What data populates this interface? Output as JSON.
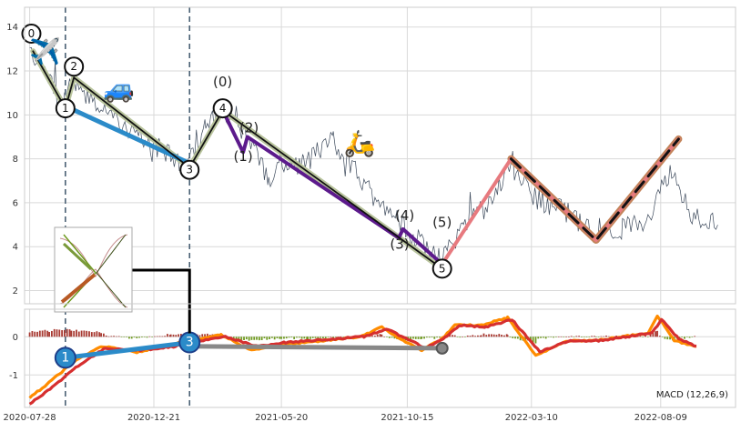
{
  "chart_data": [
    {
      "type": "line",
      "panel": "price",
      "y_ticks": [
        2,
        4,
        6,
        8,
        10,
        12,
        14
      ],
      "ylim": [
        1.4,
        14.9
      ],
      "grid": true,
      "series": [
        {
          "role": "price",
          "color": "#3d4a5c",
          "anchors": [
            [
              "2020-07-28",
              13.0
            ],
            [
              "2020-08-15",
              11.8
            ],
            [
              "2020-09-05",
              10.4
            ],
            [
              "2020-09-14",
              11.7
            ],
            [
              "2020-10-20",
              10.2
            ],
            [
              "2020-11-25",
              9.2
            ],
            [
              "2020-12-25",
              8.5
            ],
            [
              "2021-01-28",
              7.6
            ],
            [
              "2021-02-20",
              9.4
            ],
            [
              "2021-03-12",
              10.3
            ],
            [
              "2021-04-10",
              8.8
            ],
            [
              "2021-05-05",
              7.2
            ],
            [
              "2021-06-15",
              7.8
            ],
            [
              "2021-07-20",
              8.8
            ],
            [
              "2021-09-01",
              6.5
            ],
            [
              "2021-10-18",
              4.6
            ],
            [
              "2021-11-25",
              3.4
            ],
            [
              "2021-12-20",
              5.0
            ],
            [
              "2022-01-25",
              6.0
            ],
            [
              "2022-02-14",
              7.9
            ],
            [
              "2022-03-15",
              6.2
            ],
            [
              "2022-04-20",
              5.6
            ],
            [
              "2022-05-25",
              4.6
            ],
            [
              "2022-06-25",
              4.8
            ],
            [
              "2022-07-25",
              5.3
            ],
            [
              "2022-08-20",
              7.5
            ],
            [
              "2022-09-15",
              5.5
            ],
            [
              "2022-10-15",
              5.1
            ]
          ]
        },
        {
          "role": "wave-main",
          "color": "#111111",
          "width": 1.8,
          "points": [
            [
              "2020-08-01",
              12.9
            ],
            [
              "2020-09-08",
              10.3
            ],
            [
              "2020-09-18",
              11.7
            ],
            [
              "2021-02-01",
              7.6
            ],
            [
              "2021-03-12",
              10.2
            ],
            [
              "2021-11-25",
              3.0
            ]
          ]
        },
        {
          "role": "wave-shadow",
          "color": "#b9c49d",
          "width": 6,
          "points": [
            [
              "2020-08-01",
              12.9
            ],
            [
              "2020-09-08",
              10.3
            ],
            [
              "2020-09-18",
              11.7
            ],
            [
              "2021-02-01",
              7.6
            ],
            [
              "2021-03-12",
              10.2
            ],
            [
              "2021-11-25",
              3.0
            ]
          ]
        },
        {
          "role": "trend-blue",
          "color": "#2b8bc9",
          "width": 5,
          "points": [
            [
              "2020-09-08",
              10.4
            ],
            [
              "2021-02-01",
              7.8
            ]
          ]
        },
        {
          "role": "sub-wave",
          "color": "#5c1a8c",
          "width": 4,
          "points": [
            [
              "2021-03-12",
              10.2
            ],
            [
              "2021-04-05",
              8.3
            ],
            [
              "2021-04-10",
              9.0
            ],
            [
              "2021-10-05",
              4.4
            ],
            [
              "2021-10-10",
              4.8
            ],
            [
              "2021-11-25",
              3.2
            ]
          ]
        },
        {
          "role": "projection-pink",
          "color": "#e77a7f",
          "width": 4,
          "points": [
            [
              "2021-11-25",
              3.2
            ],
            [
              "2022-02-14",
              8.0
            ],
            [
              "2022-05-25",
              4.3
            ],
            [
              "2022-08-30",
              8.9
            ]
          ]
        },
        {
          "role": "projection-brown",
          "color": "#c4845b",
          "width": 8,
          "points": [
            [
              "2022-02-14",
              8.0
            ],
            [
              "2022-05-25",
              4.3
            ],
            [
              "2022-08-30",
              8.9
            ]
          ]
        },
        {
          "role": "projection-dashed",
          "color": "#111111",
          "width": 3,
          "dash": true,
          "points": [
            [
              "2022-02-14",
              8.0
            ],
            [
              "2022-05-25",
              4.3
            ],
            [
              "2022-08-30",
              8.9
            ]
          ]
        }
      ],
      "wave_circles": [
        {
          "label": "0",
          "x": "2020-07-30",
          "y": 13.7
        },
        {
          "label": "2",
          "x": "2020-09-18",
          "y": 12.2
        },
        {
          "label": "1",
          "x": "2020-09-08",
          "y": 10.3
        },
        {
          "label": "3",
          "x": "2021-02-01",
          "y": 7.5
        },
        {
          "label": "4",
          "x": "2021-03-12",
          "y": 10.3
        },
        {
          "label": "5",
          "x": "2021-11-25",
          "y": 3.0
        }
      ],
      "sub_labels": [
        {
          "label": "(0)",
          "x": "2021-03-12",
          "y": 11.3
        },
        {
          "label": "(2)",
          "x": "2021-04-12",
          "y": 9.2
        },
        {
          "label": "(1)",
          "x": "2021-04-05",
          "y": 7.9
        },
        {
          "label": "(4)",
          "x": "2021-10-12",
          "y": 5.2
        },
        {
          "label": "(3)",
          "x": "2021-10-06",
          "y": 3.9
        },
        {
          "label": "(5)",
          "x": "2021-11-25",
          "y": 4.9
        }
      ],
      "emoji": [
        {
          "glyph": "✈️",
          "name": "airplane-emoji",
          "x": "2020-08-15",
          "y": 12.9
        },
        {
          "glyph": "🚙",
          "name": "car-emoji",
          "x": "2020-11-10",
          "y": 11.2
        },
        {
          "glyph": "🛵",
          "name": "scooter-emoji",
          "x": "2021-08-20",
          "y": 8.7
        }
      ],
      "vlines": [
        "2020-09-08",
        "2021-02-01"
      ]
    },
    {
      "type": "line",
      "panel": "macd",
      "label": "MACD (12,26,9)",
      "y_ticks": [
        -1,
        0
      ],
      "ylim": [
        -1.85,
        0.72
      ],
      "grid": true,
      "series": [
        {
          "role": "macd",
          "color": "#ff8c00",
          "anchors": [
            [
              "2020-07-28",
              -1.6
            ],
            [
              "2020-08-20",
              -1.2
            ],
            [
              "2020-09-15",
              -0.7
            ],
            [
              "2020-10-20",
              -0.25
            ],
            [
              "2020-12-01",
              -0.4
            ],
            [
              "2021-01-10",
              -0.2
            ],
            [
              "2021-02-01",
              -0.1
            ],
            [
              "2021-03-10",
              0.05
            ],
            [
              "2021-04-15",
              -0.35
            ],
            [
              "2021-05-20",
              -0.2
            ],
            [
              "2021-06-20",
              -0.15
            ],
            [
              "2021-08-20",
              0.0
            ],
            [
              "2021-09-15",
              0.25
            ],
            [
              "2021-10-10",
              -0.1
            ],
            [
              "2021-11-01",
              -0.35
            ],
            [
              "2021-11-25",
              -0.05
            ],
            [
              "2021-12-10",
              0.3
            ],
            [
              "2022-01-10",
              0.3
            ],
            [
              "2022-02-10",
              0.5
            ],
            [
              "2022-03-15",
              -0.5
            ],
            [
              "2022-04-20",
              -0.1
            ],
            [
              "2022-05-25",
              -0.1
            ],
            [
              "2022-06-25",
              0.0
            ],
            [
              "2022-07-25",
              0.1
            ],
            [
              "2022-08-05",
              0.55
            ],
            [
              "2022-08-25",
              -0.1
            ],
            [
              "2022-09-20",
              -0.25
            ]
          ]
        },
        {
          "role": "signal",
          "color": "#d62f2f",
          "anchors": [
            [
              "2020-07-28",
              -1.75
            ],
            [
              "2020-08-25",
              -1.3
            ],
            [
              "2020-09-20",
              -0.8
            ],
            [
              "2020-10-25",
              -0.3
            ],
            [
              "2020-12-05",
              -0.35
            ],
            [
              "2021-01-15",
              -0.25
            ],
            [
              "2021-02-05",
              -0.15
            ],
            [
              "2021-03-15",
              0.0
            ],
            [
              "2021-04-20",
              -0.25
            ],
            [
              "2021-05-25",
              -0.15
            ],
            [
              "2021-06-25",
              -0.1
            ],
            [
              "2021-08-25",
              0.0
            ],
            [
              "2021-09-20",
              0.2
            ],
            [
              "2021-10-15",
              -0.05
            ],
            [
              "2021-11-05",
              -0.3
            ],
            [
              "2021-11-30",
              0.0
            ],
            [
              "2021-12-15",
              0.3
            ],
            [
              "2022-01-15",
              0.25
            ],
            [
              "2022-02-15",
              0.45
            ],
            [
              "2022-03-20",
              -0.4
            ],
            [
              "2022-04-25",
              -0.1
            ],
            [
              "2022-05-30",
              -0.1
            ],
            [
              "2022-06-30",
              0.0
            ],
            [
              "2022-07-30",
              0.1
            ],
            [
              "2022-08-10",
              0.45
            ],
            [
              "2022-08-30",
              -0.05
            ],
            [
              "2022-09-20",
              -0.25
            ]
          ]
        },
        {
          "role": "divergence-blue",
          "color": "#2b8bc9",
          "width": 5,
          "points": [
            [
              "2020-09-08",
              -0.55
            ],
            [
              "2021-02-01",
              -0.15
            ]
          ]
        },
        {
          "role": "divergence-grey",
          "color": "#888888",
          "width": 5,
          "points": [
            [
              "2021-02-01",
              -0.25
            ],
            [
              "2021-11-25",
              -0.3
            ]
          ]
        }
      ],
      "markers": [
        {
          "label": "1",
          "x": "2020-09-08",
          "y": -0.55,
          "color": "#2b8bc9"
        },
        {
          "label": "3",
          "x": "2021-02-01",
          "y": -0.15,
          "color": "#2b8bc9"
        },
        {
          "label": "",
          "x": "2021-11-25",
          "y": -0.3,
          "color": "#888888"
        }
      ]
    }
  ],
  "x_axis": {
    "xlim": [
      "2020-07-22",
      "2022-11-05"
    ],
    "ticks": [
      "2020-07-28",
      "2020-12-21",
      "2021-05-20",
      "2021-10-15",
      "2022-03-10",
      "2022-08-09"
    ]
  },
  "colors": {
    "background": "#ffffff",
    "grid": "#d9d9d9",
    "hist_pos": "#a83a32",
    "hist_neg": "#6f9a1f"
  },
  "inset": {
    "name": "pattern-thumbnail"
  }
}
